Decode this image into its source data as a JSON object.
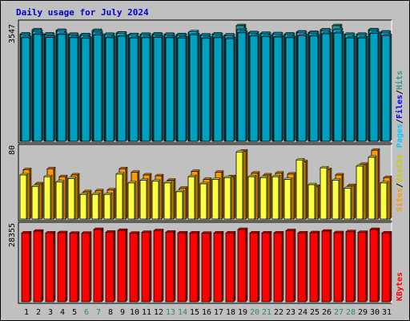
{
  "title": "Daily usage for July 2024",
  "colors": {
    "hits": "#339988",
    "files": "#00ccff",
    "pages": "#00a0c0",
    "visits": "#ffff44",
    "sites": "#ff9900",
    "kbytes": "#ff0000",
    "weekend_day": "#2a8a6a",
    "weekday": "#000000",
    "legend_slash": "#000000",
    "legend_visits": "#cccc00",
    "legend_sites": "#ff9900",
    "legend_hits": "#339988",
    "legend_files": "#0000ff",
    "legend_pages": "#00ccff",
    "legend_kbytes": "#ff0000"
  },
  "legend": {
    "hits": "Hits",
    "files": "Files",
    "pages": "Pages",
    "visits": "Visits",
    "sites": "Sites",
    "kbytes": "KBytes",
    "slash": "/"
  },
  "chart_data": [
    {
      "type": "bar",
      "panel": "hits-files-pages",
      "max_label": "3547",
      "ylim": [
        0,
        3547
      ],
      "categories": [
        "1",
        "2",
        "3",
        "4",
        "5",
        "6",
        "7",
        "8",
        "9",
        "10",
        "11",
        "12",
        "13",
        "14",
        "15",
        "16",
        "17",
        "18",
        "19",
        "20",
        "21",
        "22",
        "23",
        "24",
        "25",
        "26",
        "27",
        "28",
        "29",
        "30",
        "31"
      ],
      "series": [
        {
          "name": "Hits",
          "values": [
            3290,
            3420,
            3290,
            3400,
            3280,
            3270,
            3400,
            3280,
            3320,
            3270,
            3280,
            3290,
            3280,
            3270,
            3340,
            3260,
            3290,
            3260,
            3547,
            3330,
            3310,
            3300,
            3290,
            3350,
            3340,
            3420,
            3547,
            3280,
            3280,
            3420,
            3350
          ]
        },
        {
          "name": "Files",
          "values": [
            3270,
            3370,
            3260,
            3380,
            3260,
            3250,
            3350,
            3270,
            3310,
            3260,
            3270,
            3270,
            3260,
            3250,
            3360,
            3250,
            3270,
            3240,
            3420,
            3320,
            3300,
            3290,
            3270,
            3330,
            3320,
            3390,
            3420,
            3260,
            3260,
            3400,
            3330
          ]
        },
        {
          "name": "Pages",
          "values": [
            3180,
            3280,
            3190,
            3280,
            3180,
            3160,
            3260,
            3180,
            3220,
            3170,
            3180,
            3190,
            3180,
            3170,
            3270,
            3160,
            3180,
            3150,
            3330,
            3230,
            3210,
            3200,
            3180,
            3240,
            3230,
            3300,
            3320,
            3170,
            3170,
            3310,
            3240
          ]
        }
      ]
    },
    {
      "type": "bar",
      "panel": "visits-sites",
      "max_label": "80",
      "ylim": [
        0,
        80
      ],
      "categories": [
        "1",
        "2",
        "3",
        "4",
        "5",
        "6",
        "7",
        "8",
        "9",
        "10",
        "11",
        "12",
        "13",
        "14",
        "15",
        "16",
        "17",
        "18",
        "19",
        "20",
        "21",
        "22",
        "23",
        "24",
        "25",
        "26",
        "27",
        "28",
        "29",
        "30",
        "31"
      ],
      "series": [
        {
          "name": "Visits",
          "values": [
            50,
            37,
            48,
            42,
            46,
            28,
            28,
            28,
            51,
            41,
            44,
            43,
            41,
            31,
            48,
            40,
            45,
            47,
            76,
            48,
            47,
            48,
            45,
            67,
            39,
            58,
            44,
            35,
            60,
            70,
            41
          ]
        },
        {
          "name": "Sites",
          "values": [
            56,
            40,
            57,
            48,
            50,
            31,
            32,
            33,
            57,
            53,
            50,
            49,
            44,
            35,
            54,
            45,
            53,
            48,
            77,
            52,
            50,
            52,
            51,
            65,
            37,
            56,
            50,
            38,
            62,
            78,
            47
          ]
        }
      ]
    },
    {
      "type": "bar",
      "panel": "kbytes",
      "max_label": "28355",
      "ylim": [
        0,
        28355
      ],
      "categories": [
        "1",
        "2",
        "3",
        "4",
        "5",
        "6",
        "7",
        "8",
        "9",
        "10",
        "11",
        "12",
        "13",
        "14",
        "15",
        "16",
        "17",
        "18",
        "19",
        "20",
        "21",
        "22",
        "23",
        "24",
        "25",
        "26",
        "27",
        "28",
        "29",
        "30",
        "31"
      ],
      "series": [
        {
          "name": "KBytes",
          "values": [
            27000,
            27700,
            27000,
            27100,
            26900,
            26900,
            28355,
            27300,
            28000,
            26900,
            27200,
            27900,
            27300,
            27000,
            27000,
            26900,
            27000,
            27000,
            28355,
            27000,
            27000,
            27000,
            27900,
            27000,
            27100,
            27700,
            27100,
            27500,
            27200,
            28355,
            27000
          ]
        }
      ]
    }
  ],
  "weekend_days": [
    "6",
    "7",
    "13",
    "14",
    "20",
    "21",
    "27",
    "28"
  ]
}
